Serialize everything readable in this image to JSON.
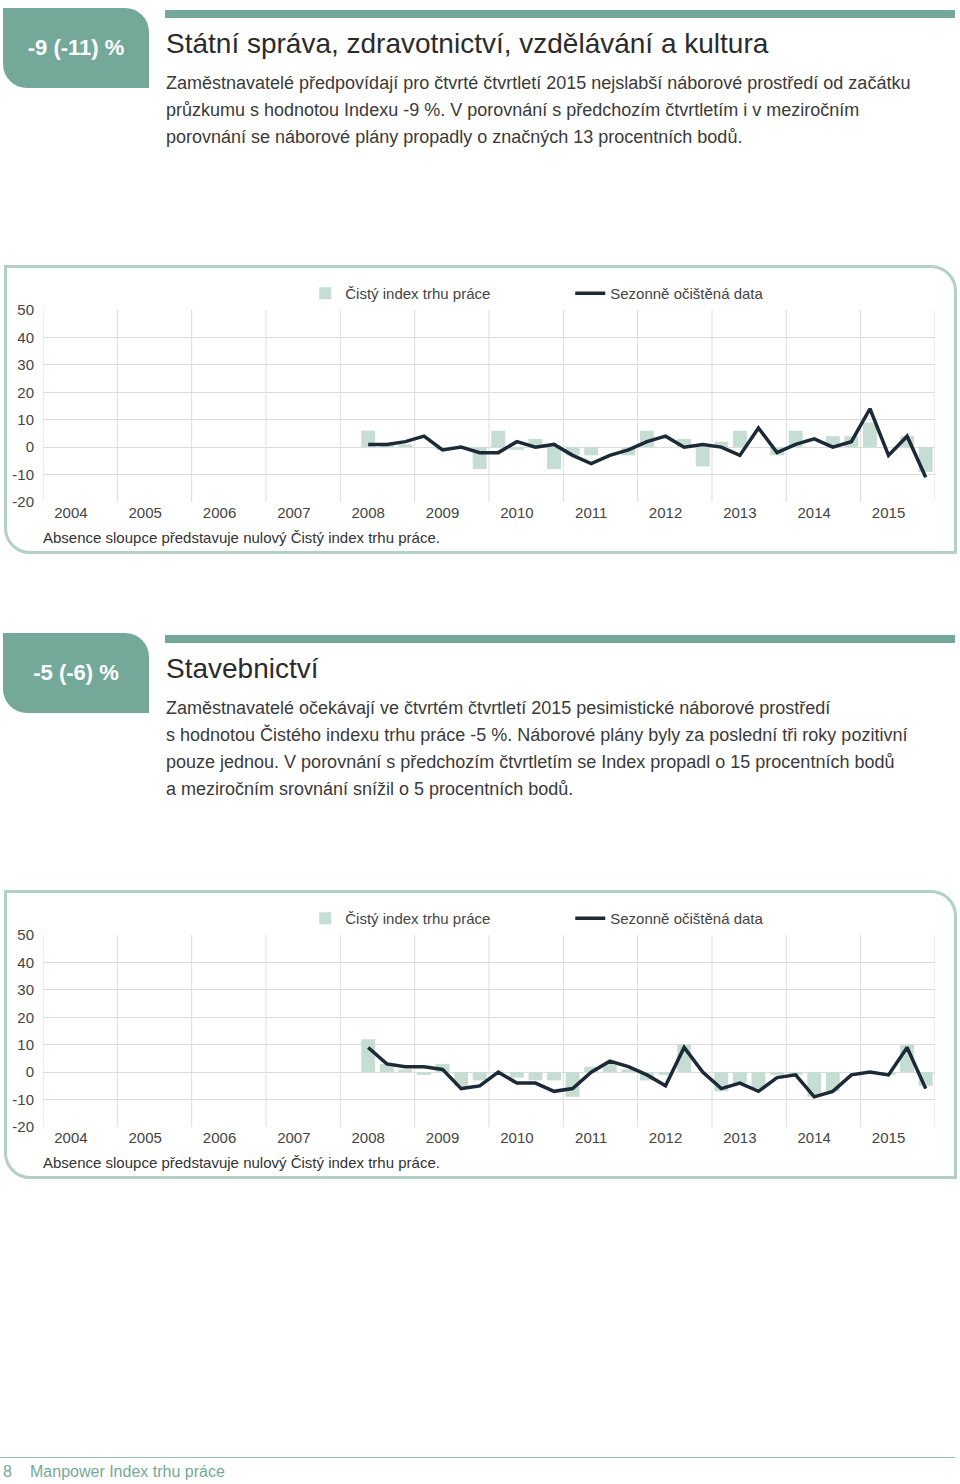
{
  "sections": [
    {
      "badge": "-9 (-11) %",
      "title": "Státní správa, zdravotnictví, vzdělávání a kultura",
      "text": [
        "Zaměstnavatelé předpovídají pro čtvrté čtvrtletí 2015 nejslabší náborové prostředí od začátku",
        "průzkumu s hodnotou Indexu -9 %. V porovnání s předchozím čtvrtletím i v meziročním",
        "porovnání se náborové plány propadly o značných 13 procentních bodů."
      ]
    },
    {
      "badge": "-5 (-6) %",
      "title": "Stavebnictví",
      "text": [
        "Zaměstnavatelé očekávají ve čtvrtém čtvrtletí 2015 pesimistické náborové prostředí",
        "s hodnotou Čistého indexu trhu práce -5 %. Náborové plány byly za poslední tři roky pozitivní",
        "pouze jednou. V porovnání s předchozím čtvrtletím se Index propadl o 15 procentních bodů",
        "a meziročním srovnání snížil o 5 procentních bodů."
      ]
    }
  ],
  "chart_data": [
    {
      "type": "bar",
      "categories": [
        null,
        "2004",
        null,
        null,
        null,
        "2005",
        null,
        null,
        null,
        "2006",
        null,
        null,
        null,
        "2007",
        null,
        null,
        null,
        "2008",
        null,
        null,
        null,
        "2009",
        null,
        null,
        null,
        "2010",
        null,
        null,
        null,
        "2011",
        null,
        null,
        null,
        "2012",
        null,
        null,
        null,
        "2013",
        null,
        null,
        null,
        "2014",
        null,
        null,
        null,
        "2015",
        null,
        null
      ],
      "series": [
        {
          "name": "Čistý index trhu práce",
          "type": "bar",
          "color": "#c6ddd3",
          "values": [
            null,
            null,
            null,
            null,
            null,
            null,
            null,
            null,
            null,
            null,
            null,
            null,
            null,
            null,
            null,
            null,
            null,
            6,
            1,
            1,
            0,
            -1,
            0,
            -8,
            6,
            -1,
            3,
            -8,
            -3,
            -3,
            0,
            -3,
            6,
            0,
            3,
            -7,
            2,
            6,
            0,
            -3,
            6,
            0,
            4,
            4,
            9,
            0,
            4,
            -9
          ]
        },
        {
          "name": "Sezonně očištěná data",
          "type": "line",
          "color": "#1b2a36",
          "values": [
            null,
            null,
            null,
            null,
            null,
            null,
            null,
            null,
            null,
            null,
            null,
            null,
            null,
            null,
            null,
            null,
            null,
            1,
            1,
            2,
            4,
            -1,
            0,
            -2,
            -2,
            2,
            0,
            1,
            -3,
            -6,
            -3,
            -1,
            2,
            4,
            0,
            1,
            0,
            -3,
            7,
            -2,
            1,
            3,
            0,
            2,
            14,
            -3,
            4,
            -11
          ]
        }
      ],
      "ylim": [
        -20,
        50
      ],
      "yticks": [
        -20,
        -10,
        0,
        10,
        20,
        30,
        40,
        50
      ],
      "grid": true,
      "legend": "top",
      "note": "Absence sloupce představuje nulový Čistý index trhu práce."
    },
    {
      "type": "bar",
      "categories": [
        null,
        "2004",
        null,
        null,
        null,
        "2005",
        null,
        null,
        null,
        "2006",
        null,
        null,
        null,
        "2007",
        null,
        null,
        null,
        "2008",
        null,
        null,
        null,
        "2009",
        null,
        null,
        null,
        "2010",
        null,
        null,
        null,
        "2011",
        null,
        null,
        null,
        "2012",
        null,
        null,
        null,
        "2013",
        null,
        null,
        null,
        "2014",
        null,
        null,
        null,
        "2015",
        null,
        null
      ],
      "series": [
        {
          "name": "Čistý index trhu práce",
          "type": "bar",
          "color": "#c6ddd3",
          "values": [
            null,
            null,
            null,
            null,
            null,
            null,
            null,
            null,
            null,
            null,
            null,
            null,
            null,
            null,
            null,
            null,
            null,
            12,
            3,
            1,
            -1,
            3,
            -5,
            -3,
            0,
            -2,
            -3,
            -3,
            -9,
            2,
            3,
            1,
            -3,
            -1,
            10,
            0,
            -7,
            -4,
            -6,
            -1,
            -1,
            -9,
            -7,
            0,
            0,
            -1,
            10,
            -5
          ]
        },
        {
          "name": "Sezonně očištěná data",
          "type": "line",
          "color": "#1b2a36",
          "values": [
            null,
            null,
            null,
            null,
            null,
            null,
            null,
            null,
            null,
            null,
            null,
            null,
            null,
            null,
            null,
            null,
            null,
            9,
            3,
            2,
            2,
            1,
            -6,
            -5,
            0,
            -4,
            -4,
            -7,
            -6,
            0,
            4,
            2,
            -1,
            -5,
            9,
            0,
            -6,
            -4,
            -7,
            -2,
            -1,
            -9,
            -7,
            -1,
            0,
            -1,
            9,
            -6
          ]
        }
      ],
      "ylim": [
        -20,
        50
      ],
      "yticks": [
        -20,
        -10,
        0,
        10,
        20,
        30,
        40,
        50
      ],
      "grid": true,
      "legend": "top",
      "note": "Absence sloupce představuje nulový Čistý index trhu práce."
    }
  ],
  "footer": {
    "page": "8",
    "text": "Manpower Index trhu práce"
  }
}
